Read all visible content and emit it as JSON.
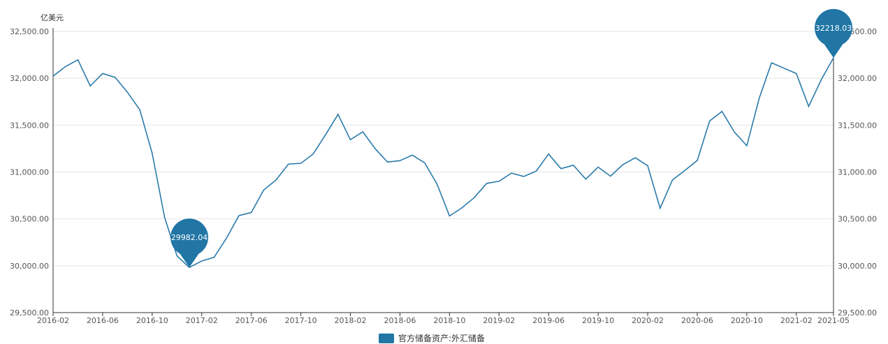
{
  "chart_data": {
    "type": "line",
    "ylabel": "亿美元",
    "ylim": [
      29500,
      32500
    ],
    "yticks": [
      "29,500.00",
      "30,000.00",
      "30,500.00",
      "31,000.00",
      "31,500.00",
      "32,000.00",
      "32,500.00"
    ],
    "ytick_values": [
      29500,
      30000,
      30500,
      31000,
      31500,
      32000,
      32500
    ],
    "xticks": [
      "2016-02",
      "2016-06",
      "2016-10",
      "2017-02",
      "2017-06",
      "2017-10",
      "2018-02",
      "2018-06",
      "2018-10",
      "2019-02",
      "2019-06",
      "2019-10",
      "2020-02",
      "2020-06",
      "2020-10",
      "2021-02",
      "2021-05"
    ],
    "xtick_index": [
      0,
      4,
      8,
      12,
      16,
      20,
      24,
      28,
      32,
      36,
      40,
      44,
      48,
      52,
      56,
      60,
      63
    ],
    "x_start": "2016-02",
    "x_end": "2021-05",
    "legend_position": "bottom-center",
    "grid": true,
    "colors": {
      "line": "#2b7bab",
      "pin": "#2176a5",
      "grid": "#e4e4e4",
      "axis": "#333333"
    },
    "series": [
      {
        "name": "官方储备资产:外汇储备",
        "values": [
          32023,
          32125,
          32197,
          31917,
          32051,
          32010,
          31851,
          31664,
          31200,
          30516,
          30105,
          29982,
          30051,
          30090,
          30295,
          30535,
          30568,
          30807,
          30915,
          31085,
          31092,
          31193,
          31399,
          31615,
          31345,
          31428,
          31249,
          31106,
          31121,
          31180,
          31097,
          30870,
          30531,
          30617,
          30727,
          30879,
          30901,
          30988,
          30952,
          31010,
          31192,
          31036,
          31072,
          30924,
          31052,
          30955,
          31079,
          31152,
          31068,
          30614,
          30915,
          31017,
          31123,
          31544,
          31646,
          31426,
          31280,
          31785,
          32165,
          32108,
          32050,
          31700,
          31983,
          32218
        ]
      }
    ],
    "annotations": [
      {
        "label": "29982.04",
        "index": 11,
        "value": 29982.04
      },
      {
        "label": "32218.03",
        "index": 63,
        "value": 32218.03
      }
    ]
  }
}
